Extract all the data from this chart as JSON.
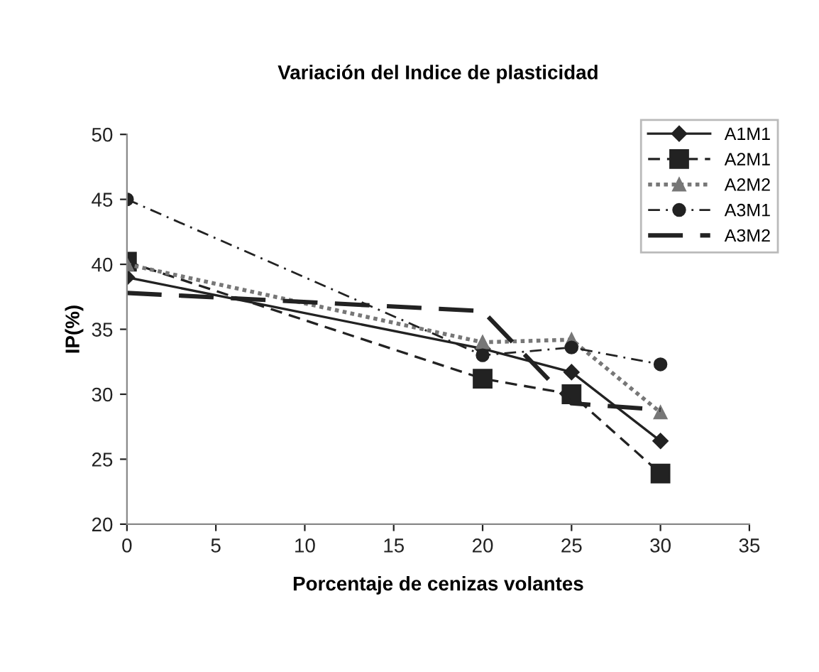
{
  "chart_data": {
    "type": "line",
    "title": "Variación del Indice de plasticidad",
    "xlabel": "Porcentaje de cenizas volantes",
    "ylabel": "IP(%)",
    "x": [
      0,
      20,
      25,
      30
    ],
    "xlim": [
      0,
      35
    ],
    "xticks": [
      0,
      5,
      10,
      15,
      20,
      25,
      30,
      35
    ],
    "ylim": [
      20,
      50
    ],
    "yticks": [
      20,
      25,
      30,
      35,
      40,
      45,
      50
    ],
    "grid": false,
    "legend": "top right",
    "series": [
      {
        "name": "A1M1",
        "color": "#222222",
        "marker": "diamond",
        "line_style": "solid",
        "values": [
          39,
          33.5,
          31.7,
          26.4
        ]
      },
      {
        "name": "A2M1",
        "color": "#222222",
        "marker": "square",
        "line_style": "dashed",
        "values": [
          40.2,
          31.2,
          30,
          23.9
        ]
      },
      {
        "name": "A2M2",
        "color": "#777777",
        "marker": "triangle",
        "line_style": "dotted",
        "values": [
          40,
          34,
          34.2,
          28.6
        ]
      },
      {
        "name": "A3M1",
        "color": "#222222",
        "marker": "circle",
        "line_style": "dashdot",
        "values": [
          45,
          33,
          33.6,
          32.3
        ]
      },
      {
        "name": "A3M2",
        "color": "#222222",
        "marker": "none",
        "line_style": "longdash",
        "values": [
          37.8,
          36.4,
          29.3,
          28.8
        ]
      }
    ]
  }
}
